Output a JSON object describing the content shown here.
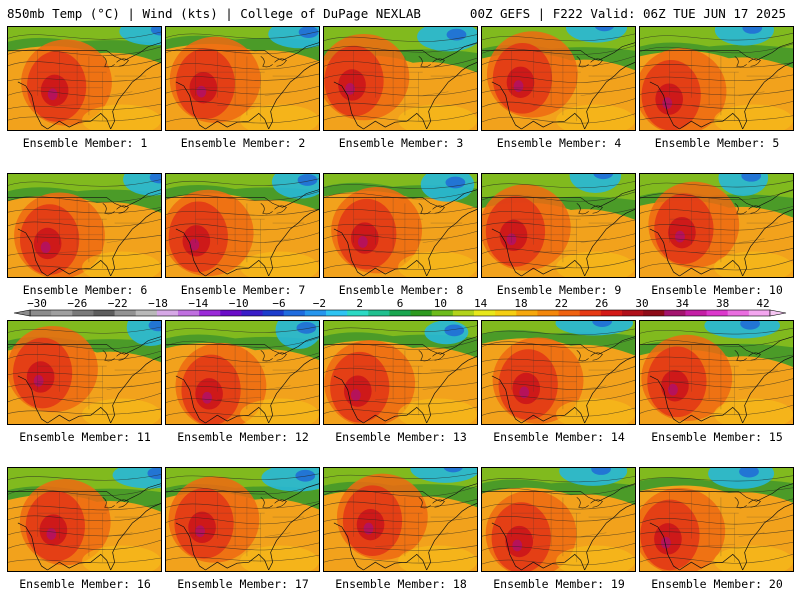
{
  "header": {
    "left": "850mb Temp (°C) | Wind (kts) | College of DuPage NEXLAB",
    "right": "00Z GEFS | F222 Valid: 06Z TUE JUN 17 2025"
  },
  "label_prefix": "Ensemble Member:",
  "members": [
    {
      "label": "Ensemble Member: 1"
    },
    {
      "label": "Ensemble Member: 2"
    },
    {
      "label": "Ensemble Member: 3"
    },
    {
      "label": "Ensemble Member: 4"
    },
    {
      "label": "Ensemble Member: 5"
    },
    {
      "label": "Ensemble Member: 6"
    },
    {
      "label": "Ensemble Member: 7"
    },
    {
      "label": "Ensemble Member: 8"
    },
    {
      "label": "Ensemble Member: 9"
    },
    {
      "label": "Ensemble Member: 10"
    },
    {
      "label": "Ensemble Member: 11"
    },
    {
      "label": "Ensemble Member: 12"
    },
    {
      "label": "Ensemble Member: 13"
    },
    {
      "label": "Ensemble Member: 14"
    },
    {
      "label": "Ensemble Member: 15"
    },
    {
      "label": "Ensemble Member: 16"
    },
    {
      "label": "Ensemble Member: 17"
    },
    {
      "label": "Ensemble Member: 18"
    },
    {
      "label": "Ensemble Member: 19"
    },
    {
      "label": "Ensemble Member: 20"
    }
  ],
  "colorbar": {
    "ticks": [
      "−30",
      "−26",
      "−22",
      "−18",
      "−14",
      "−10",
      "−6",
      "−2",
      "2",
      "6",
      "10",
      "14",
      "18",
      "22",
      "26",
      "30",
      "34",
      "38",
      "42"
    ],
    "colors": [
      "#8c8c8c",
      "#9f9f9f",
      "#7a7a7a",
      "#5e5e5e",
      "#939393",
      "#b9b9b9",
      "#d6a8e6",
      "#c070e0",
      "#9a2ad8",
      "#6a0cc8",
      "#3a1dc8",
      "#1c3ccc",
      "#1f6cdf",
      "#2696ee",
      "#2ec4f2",
      "#2cd9c4",
      "#21c08f",
      "#1aa64f",
      "#2e9a1f",
      "#6dbb1c",
      "#b2d31b",
      "#e8e81a",
      "#f5cf12",
      "#f6a80d",
      "#f3870b",
      "#ef6210",
      "#e63a14",
      "#d41a17",
      "#b0101a",
      "#8e0c18",
      "#a3156e",
      "#c41fa5",
      "#dc38cc",
      "#ea6ee0",
      "#f3a6ef"
    ]
  },
  "legend_colors": {
    "cold": "#1e5fd8",
    "cool": "#27b8d8",
    "mild": "#2e9a2a",
    "warm": "#f2a21c",
    "hot": "#e23a16",
    "extreme": "#b0106a"
  }
}
